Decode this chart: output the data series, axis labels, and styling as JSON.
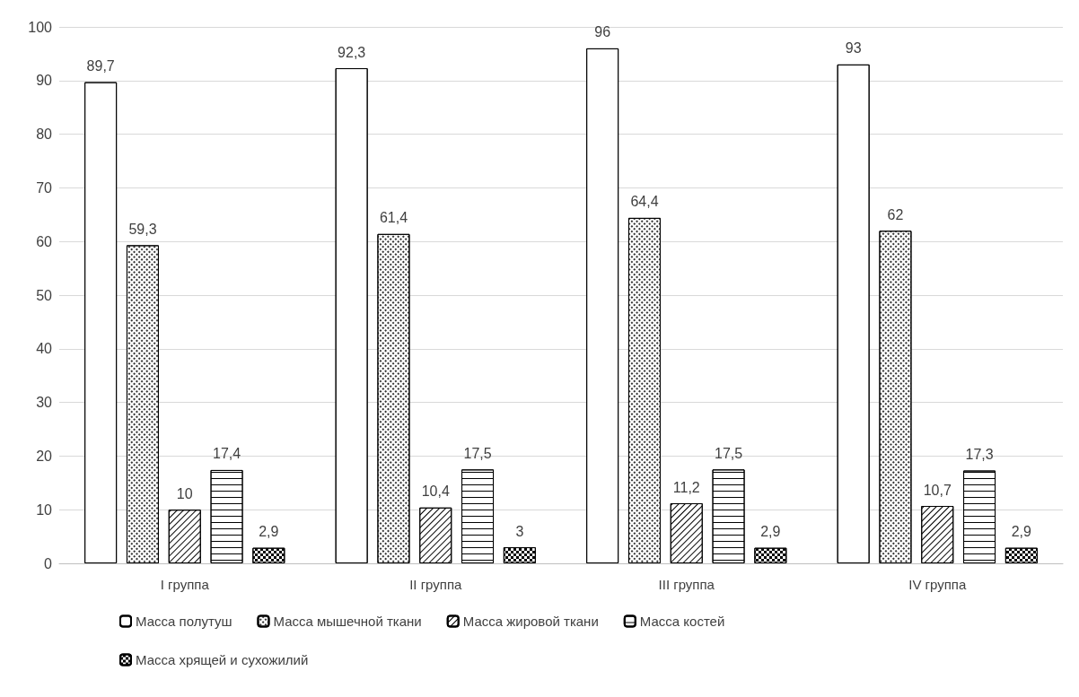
{
  "chart_data": {
    "type": "bar",
    "categories": [
      "I группа",
      "II группа",
      "III группа",
      "IV группа"
    ],
    "series": [
      {
        "name": "Масса полутуш",
        "color": "#ffffff",
        "values": [
          89.7,
          92.3,
          96,
          93
        ],
        "value_labels": [
          "89,7",
          "92,3",
          "96",
          "93"
        ]
      },
      {
        "name": "Масса мышечной ткани",
        "color": "#ffffff",
        "values": [
          59.3,
          61.4,
          64.4,
          62
        ],
        "value_labels": [
          "59,3",
          "61,4",
          "64,4",
          "62"
        ]
      },
      {
        "name": "Масса жировой ткани",
        "color": "#ffffff",
        "values": [
          10,
          10.4,
          11.2,
          10.7
        ],
        "value_labels": [
          "10",
          "10,4",
          "11,2",
          "10,7"
        ]
      },
      {
        "name": "Масса костей",
        "color": "#ffffff",
        "values": [
          17.4,
          17.5,
          17.5,
          17.3
        ],
        "value_labels": [
          "17,4",
          "17,5",
          "17,5",
          "17,3"
        ]
      },
      {
        "name": "Масса хрящей и сухожилий",
        "color": "#ffffff",
        "values": [
          2.9,
          3,
          2.9,
          2.9
        ],
        "value_labels": [
          "2,9",
          "3",
          "2,9",
          "2,9"
        ]
      }
    ],
    "ylim": [
      0,
      100
    ],
    "yticks": [
      0,
      10,
      20,
      30,
      40,
      50,
      60,
      70,
      80,
      90,
      100
    ],
    "grid": "y",
    "legend": "bottom"
  }
}
